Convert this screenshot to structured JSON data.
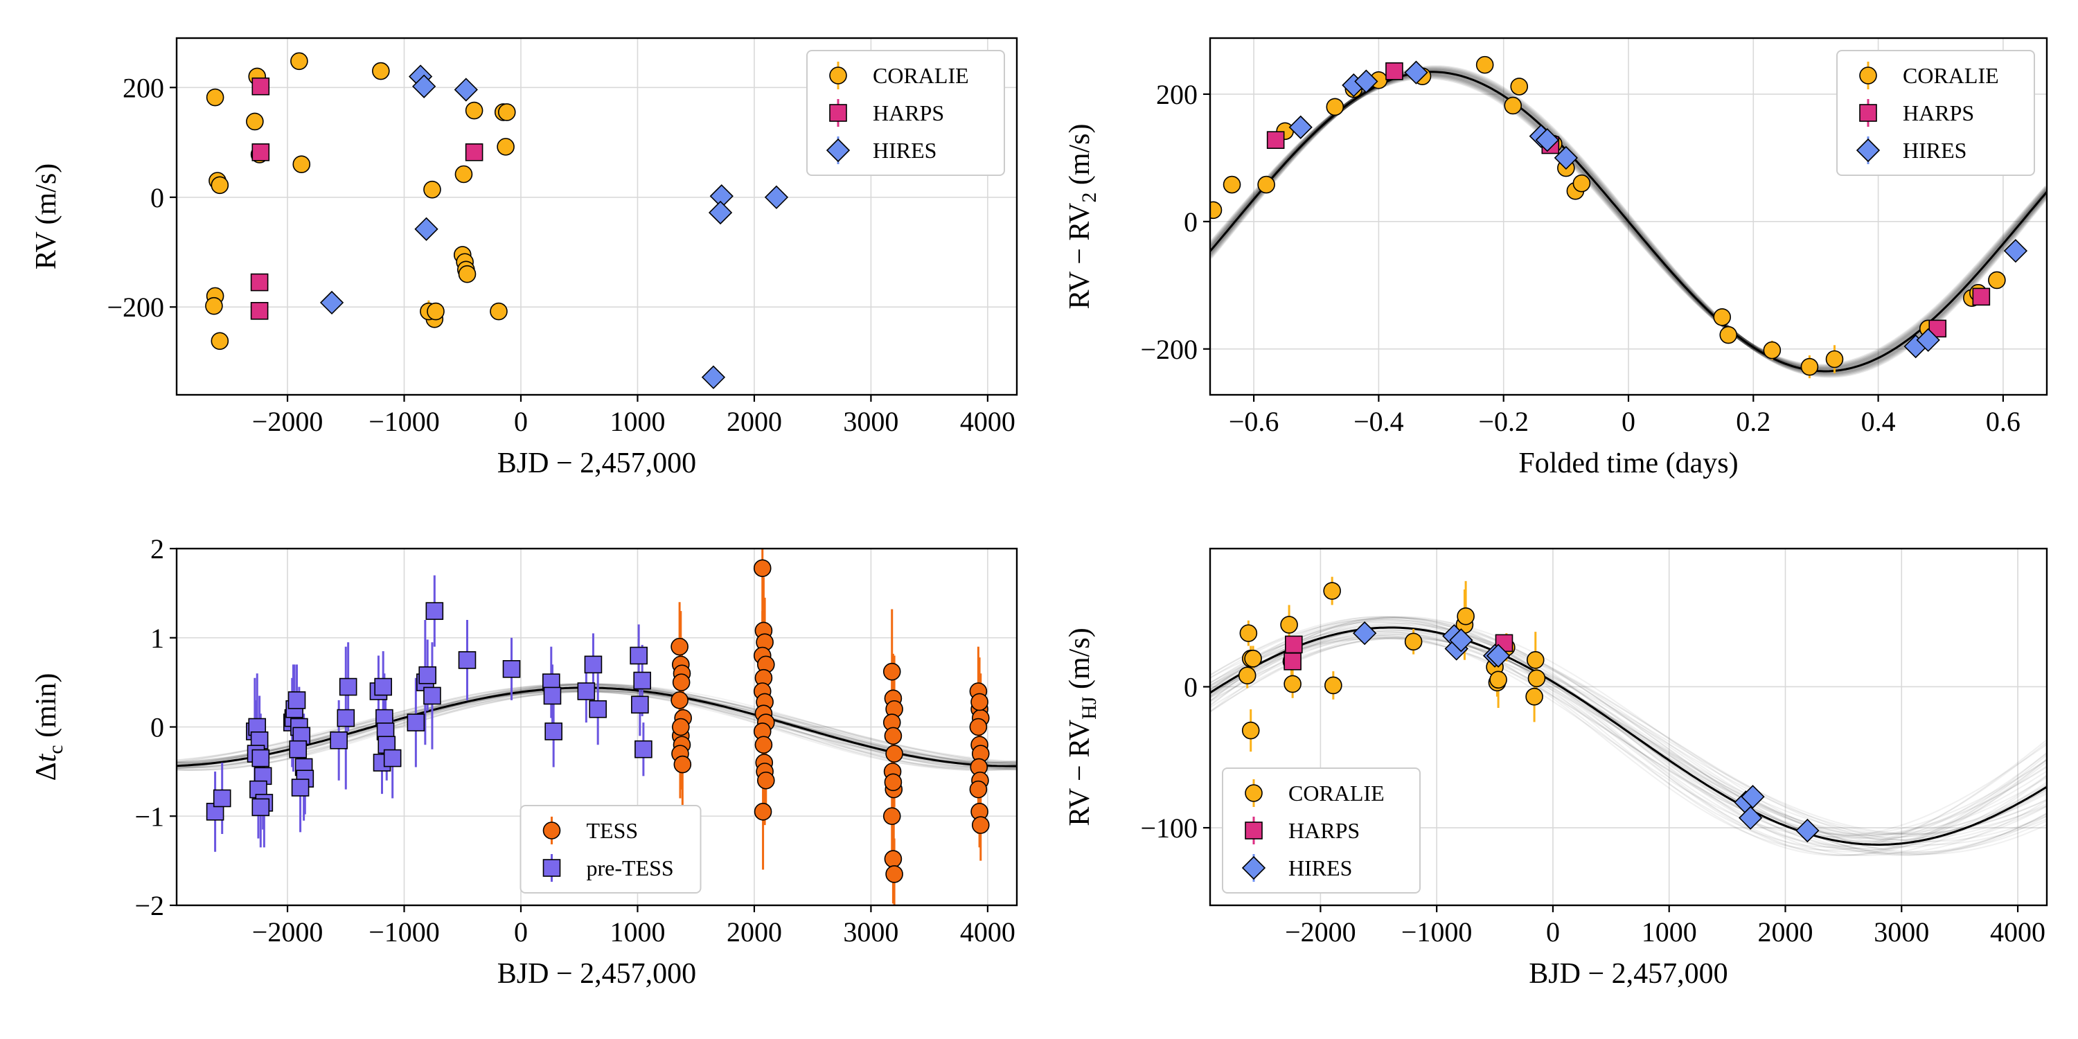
{
  "colors": {
    "coralie": "#fbb117",
    "harps": "#dc2f83",
    "hires": "#6c8ff0",
    "tess": "#f26a10",
    "pretess": "#7a68ec",
    "pretess_err": "#6a55e0",
    "model": "#000000"
  },
  "chart_data": [
    {
      "id": "rv",
      "type": "scatter",
      "xlabel": "BJD − 2,457,000",
      "ylabel": "RV (m/s)",
      "xlim": [
        -2950,
        4250
      ],
      "ylim": [
        -360,
        290
      ],
      "xticks": [
        -2000,
        -1000,
        0,
        1000,
        2000,
        3000,
        4000
      ],
      "yticks": [
        -200,
        0,
        200
      ],
      "legend": {
        "position": "top-right",
        "entries": [
          "CORALIE",
          "HARPS",
          "HIRES"
        ]
      },
      "series": [
        {
          "name": "CORALIE",
          "marker": "circle",
          "color": "#fbb117",
          "x": [
            -2620,
            -2600,
            -2580,
            -2620,
            -2630,
            -2580,
            -2260,
            -2280,
            -2240,
            -1900,
            -1880,
            -1200,
            -760,
            -740,
            -790,
            -730,
            -500,
            -480,
            -470,
            -460,
            -490,
            -400,
            -150,
            -130,
            -120,
            -190
          ],
          "y": [
            182,
            30,
            22,
            -180,
            -198,
            -262,
            220,
            138,
            78,
            248,
            60,
            230,
            14,
            -222,
            -208,
            -208,
            -105,
            -118,
            -132,
            -140,
            42,
            158,
            155,
            92,
            155,
            -208
          ],
          "err": [
            8,
            8,
            8,
            8,
            8,
            8,
            8,
            8,
            8,
            8,
            8,
            8,
            8,
            8,
            20,
            8,
            8,
            8,
            8,
            8,
            8,
            8,
            8,
            8,
            8,
            8
          ]
        },
        {
          "name": "HARPS",
          "marker": "square",
          "color": "#dc2f83",
          "x": [
            -2230,
            -2230,
            -2240,
            -2240,
            -400
          ],
          "y": [
            202,
            82,
            -155,
            -207,
            82
          ],
          "err": [
            4,
            4,
            4,
            4,
            4
          ]
        },
        {
          "name": "HIRES",
          "marker": "diamond",
          "color": "#6c8ff0",
          "x": [
            -1620,
            -860,
            -830,
            -810,
            -470,
            1650,
            1720,
            1710,
            2190
          ],
          "y": [
            -192,
            220,
            202,
            -58,
            196,
            -328,
            2,
            -28,
            0
          ],
          "err": [
            3,
            3,
            3,
            3,
            3,
            3,
            3,
            3,
            3
          ]
        }
      ]
    },
    {
      "id": "fold",
      "type": "line",
      "xlabel": "Folded time (days)",
      "ylabel_main": "RV − RV",
      "ylabel_sub": "2",
      "ylabel_tail": " (m/s)",
      "xlim": [
        -0.67,
        0.67
      ],
      "ylim": [
        -272,
        288
      ],
      "xticks": [
        -0.6,
        -0.4,
        -0.2,
        0.0,
        0.2,
        0.4,
        0.6
      ],
      "yticks": [
        -200,
        0,
        200
      ],
      "legend": {
        "position": "top-right",
        "entries": [
          "CORALIE",
          "HARPS",
          "HIRES"
        ]
      },
      "model": {
        "amplitude": 235,
        "period": 1.26,
        "peak_phase": -0.315
      },
      "series": [
        {
          "name": "CORALIE",
          "marker": "circle",
          "color": "#fbb117",
          "x": [
            -0.665,
            -0.635,
            -0.58,
            -0.55,
            -0.47,
            -0.44,
            -0.4,
            -0.33,
            -0.23,
            -0.185,
            -0.175,
            -0.12,
            -0.1,
            -0.085,
            -0.075,
            0.15,
            0.16,
            0.23,
            0.29,
            0.33,
            0.48,
            0.55,
            0.56,
            0.59
          ],
          "y": [
            18,
            58,
            58,
            142,
            180,
            208,
            222,
            228,
            246,
            182,
            212,
            122,
            84,
            48,
            60,
            -150,
            -178,
            -202,
            -228,
            -216,
            -168,
            -120,
            -112,
            -92
          ],
          "err": [
            10,
            10,
            10,
            10,
            10,
            10,
            10,
            10,
            10,
            10,
            10,
            10,
            10,
            10,
            10,
            10,
            10,
            15,
            18,
            22,
            10,
            10,
            10,
            10
          ]
        },
        {
          "name": "HARPS",
          "marker": "square",
          "color": "#dc2f83",
          "x": [
            -0.565,
            -0.375,
            -0.125,
            0.495,
            0.565
          ],
          "y": [
            128,
            236,
            120,
            -168,
            -118
          ],
          "err": [
            4,
            4,
            4,
            4,
            4
          ]
        },
        {
          "name": "HIRES",
          "marker": "diamond",
          "color": "#6c8ff0",
          "x": [
            -0.525,
            -0.44,
            -0.42,
            -0.34,
            -0.14,
            -0.13,
            -0.1,
            0.46,
            0.48,
            0.62
          ],
          "y": [
            148,
            214,
            220,
            234,
            134,
            128,
            100,
            -196,
            -186,
            -46
          ],
          "err": [
            3,
            3,
            3,
            3,
            3,
            3,
            3,
            3,
            3,
            3
          ]
        }
      ]
    },
    {
      "id": "ttv",
      "type": "scatter",
      "xlabel": "BJD − 2,457,000",
      "ylabel_main": "Δ",
      "ylabel_italic": "t",
      "ylabel_sub": "c",
      "ylabel_tail": " (min)",
      "xlim": [
        -2950,
        4250
      ],
      "ylim": [
        -2,
        2
      ],
      "xticks": [
        -2000,
        -1000,
        0,
        1000,
        2000,
        3000,
        4000
      ],
      "yticks": [
        -2,
        -1,
        0,
        1,
        2
      ],
      "legend": {
        "position": "bottom-center",
        "entries": [
          "TESS",
          "pre-TESS"
        ]
      },
      "model": {
        "amplitude": 0.44,
        "period": 7300,
        "peak_x": 550
      },
      "series": [
        {
          "name": "pre-TESS",
          "marker": "square",
          "color": "#7a68ec",
          "x": [
            -2620,
            -2560,
            -2280,
            -2260,
            -2240,
            -2270,
            -2230,
            -2210,
            -2250,
            -2200,
            -2230,
            -1960,
            -1950,
            -1940,
            -1920,
            -1900,
            -1880,
            -1910,
            -1860,
            -1850,
            -1890,
            -1560,
            -1500,
            -1480,
            -1220,
            -1180,
            -1170,
            -1160,
            -1150,
            -1190,
            -1100,
            -900,
            -820,
            -800,
            -760,
            -740,
            -460,
            -80,
            260,
            270,
            280,
            560,
            620,
            660,
            1010,
            1040,
            1020,
            1050
          ],
          "y": [
            -0.95,
            -0.8,
            -0.05,
            0.0,
            -0.15,
            -0.3,
            -0.35,
            -0.55,
            -0.7,
            -0.85,
            -0.9,
            0.05,
            0.1,
            0.2,
            0.3,
            0.0,
            -0.1,
            -0.25,
            -0.45,
            -0.58,
            -0.68,
            -0.15,
            0.1,
            0.45,
            0.4,
            0.45,
            0.1,
            -0.05,
            -0.2,
            -0.4,
            -0.35,
            0.05,
            0.5,
            0.58,
            0.35,
            1.3,
            0.75,
            0.65,
            0.5,
            0.35,
            -0.05,
            0.4,
            0.7,
            0.2,
            0.8,
            0.52,
            0.25,
            -0.25
          ],
          "err": [
            0.45,
            0.4,
            0.6,
            0.6,
            0.5,
            0.6,
            0.5,
            0.6,
            0.55,
            0.5,
            0.45,
            0.5,
            0.6,
            0.5,
            0.4,
            0.45,
            0.5,
            0.4,
            0.6,
            0.4,
            0.5,
            0.45,
            0.8,
            0.5,
            0.4,
            0.4,
            0.5,
            0.45,
            0.4,
            0.35,
            0.45,
            0.5,
            0.7,
            0.4,
            0.6,
            0.4,
            0.45,
            0.35,
            0.4,
            0.35,
            0.4,
            0.35,
            0.35,
            0.4,
            0.35,
            0.4,
            0.35,
            0.3
          ]
        },
        {
          "name": "TESS",
          "marker": "circle",
          "color": "#f26a10",
          "x": [
            1360,
            1370,
            1380,
            1360,
            1390,
            1370,
            1380,
            1365,
            1385,
            1375,
            1370,
            2070,
            2080,
            2090,
            2070,
            2100,
            2080,
            2070,
            2090,
            2080,
            2100,
            2070,
            2080,
            2085,
            2090,
            2100,
            2075,
            3180,
            3190,
            3200,
            3180,
            3190,
            3200,
            3185,
            3195,
            3180,
            3190,
            3200,
            3190,
            3920,
            3930,
            3940,
            3920,
            3930,
            3940,
            3925,
            3935,
            3920,
            3930,
            3940,
            3930
          ],
          "y": [
            0.9,
            0.7,
            0.6,
            0.3,
            0.1,
            -0.1,
            -0.2,
            -0.3,
            -0.42,
            0.5,
            0.0,
            1.78,
            1.08,
            0.95,
            0.8,
            0.7,
            0.55,
            0.4,
            0.28,
            0.15,
            0.05,
            -0.05,
            -0.2,
            -0.4,
            -0.5,
            -0.6,
            -0.95,
            0.62,
            0.32,
            0.2,
            0.05,
            -0.1,
            -0.3,
            -0.5,
            -0.7,
            -1.0,
            -1.48,
            -1.65,
            -0.62,
            0.4,
            0.2,
            0.1,
            0.0,
            -0.2,
            -0.3,
            -0.45,
            -0.6,
            -0.7,
            -0.95,
            -1.1,
            0.28
          ],
          "err": [
            0.5,
            0.6,
            0.4,
            0.5,
            0.5,
            0.6,
            0.5,
            0.5,
            0.6,
            0.4,
            0.5,
            0.8,
            0.6,
            0.5,
            0.5,
            0.4,
            0.5,
            0.6,
            0.5,
            0.4,
            0.5,
            0.6,
            0.4,
            0.5,
            0.6,
            0.4,
            0.65,
            0.7,
            0.5,
            0.6,
            0.5,
            0.5,
            0.6,
            0.4,
            0.6,
            0.6,
            0.5,
            0.4,
            0.6,
            0.5,
            0.4,
            0.5,
            0.4,
            0.5,
            0.4,
            0.5,
            0.4,
            0.5,
            0.4,
            0.4,
            0.5
          ]
        }
      ]
    },
    {
      "id": "trend",
      "type": "scatter",
      "xlabel": "BJD − 2,457,000",
      "ylabel_main": "RV − RV",
      "ylabel_sub": "HJ",
      "ylabel_tail": " (m/s)",
      "xlim": [
        -2950,
        4250
      ],
      "ylim": [
        -155,
        98
      ],
      "xticks": [
        -2000,
        -1000,
        0,
        1000,
        2000,
        3000,
        4000
      ],
      "yticks": [
        -100,
        0
      ],
      "legend": {
        "position": "bottom-left",
        "entries": [
          "CORALIE",
          "HARPS",
          "HIRES"
        ]
      },
      "model": {
        "amplitude": 77,
        "period": 8400,
        "peak_x": -1400,
        "offset": -35
      },
      "series": [
        {
          "name": "CORALIE",
          "marker": "circle",
          "color": "#fbb117",
          "x": [
            -2620,
            -2600,
            -2630,
            -2600,
            -2580,
            -2270,
            -2250,
            -2240,
            -1900,
            -1890,
            -1200,
            -760,
            -750,
            -500,
            -480,
            -470,
            -400,
            -150,
            -140,
            -160
          ],
          "y": [
            38,
            20,
            8,
            -31,
            20,
            44,
            18,
            2,
            68,
            1,
            32,
            44,
            50,
            14,
            3,
            5,
            28,
            19,
            6,
            -7
          ],
          "err": [
            9,
            9,
            9,
            15,
            9,
            14,
            14,
            10,
            10,
            10,
            9,
            25,
            25,
            10,
            10,
            20,
            10,
            20,
            10,
            18
          ]
        },
        {
          "name": "HARPS",
          "marker": "square",
          "color": "#dc2f83",
          "x": [
            -2240,
            -2230,
            -420
          ],
          "y": [
            18,
            30,
            31
          ],
          "err": [
            4,
            4,
            4
          ]
        },
        {
          "name": "HIRES",
          "marker": "diamond",
          "color": "#6c8ff0",
          "x": [
            -1620,
            -850,
            -830,
            -790,
            -500,
            -470,
            1660,
            1720,
            1700,
            2190
          ],
          "y": [
            38,
            36,
            27,
            33,
            22,
            22,
            -82,
            -78,
            -93,
            -102
          ],
          "err": [
            3,
            3,
            3,
            3,
            3,
            3,
            3,
            3,
            3,
            3
          ]
        }
      ]
    }
  ]
}
